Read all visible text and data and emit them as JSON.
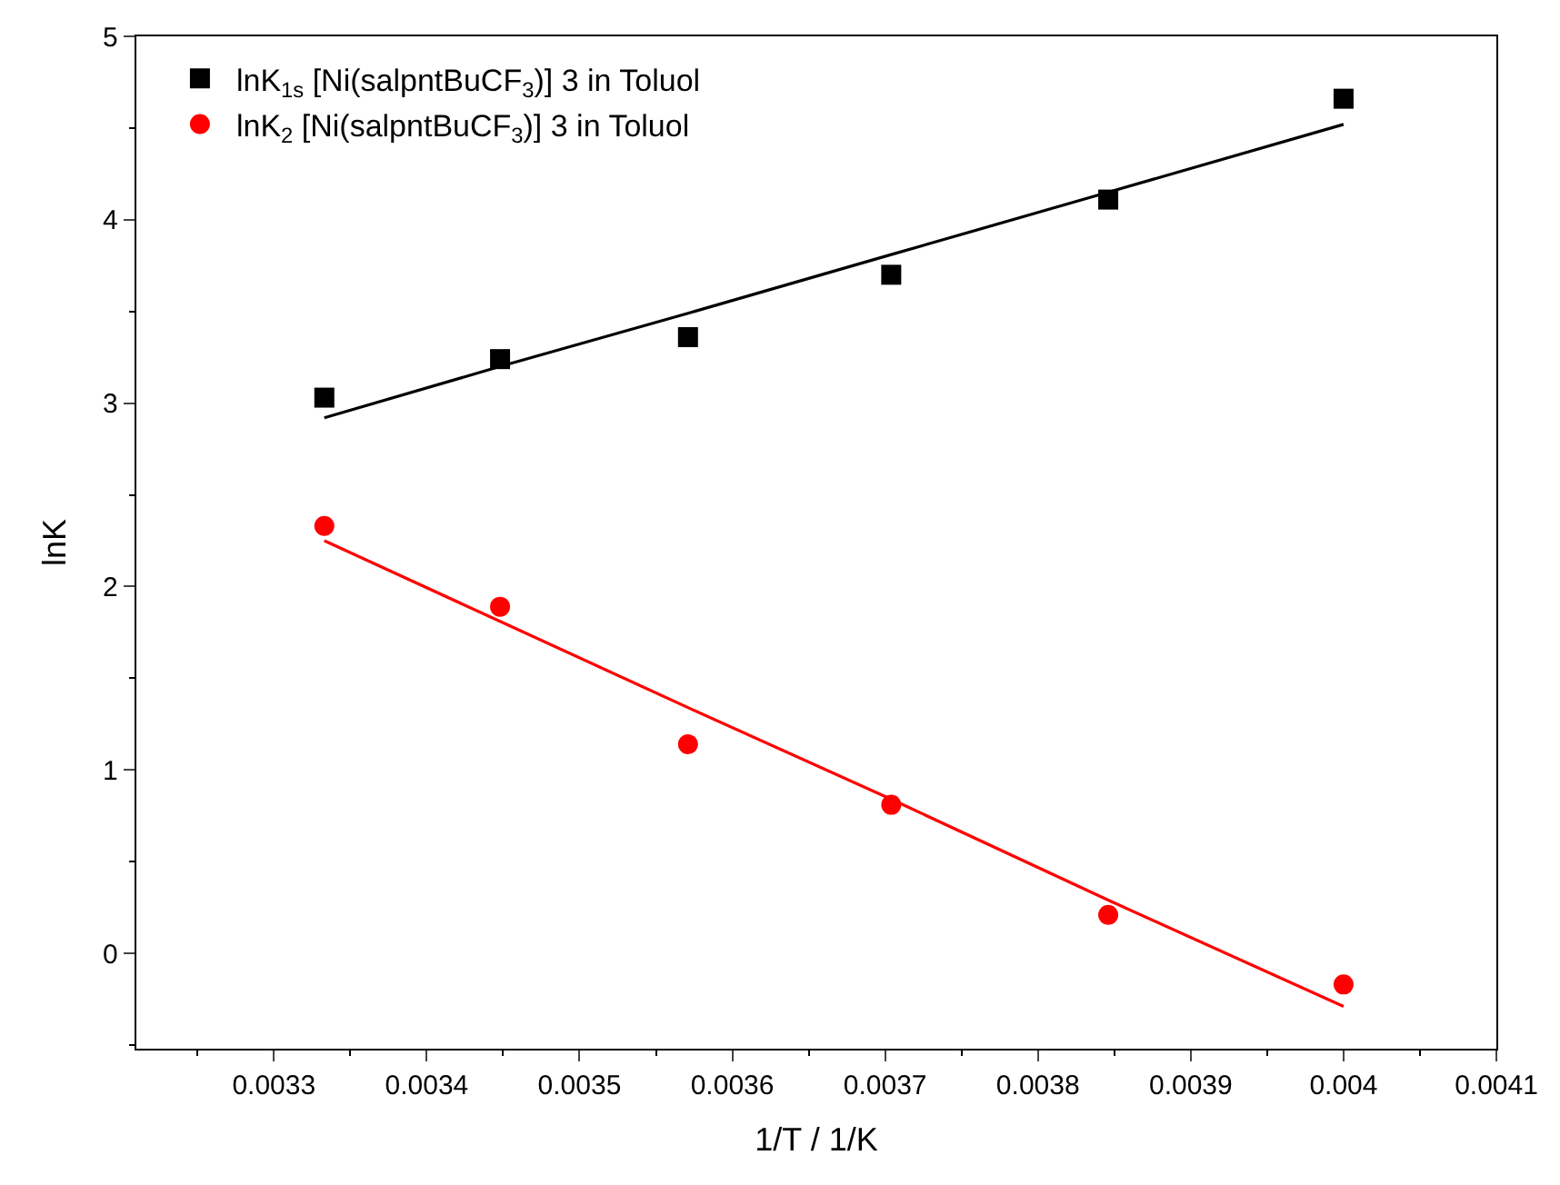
{
  "chart_data": {
    "type": "scatter",
    "xlabel": "1/T / 1/K",
    "ylabel": "lnK",
    "xlim": [
      0.00321,
      0.0041
    ],
    "ylim": [
      -0.52,
      5
    ],
    "xticks": [
      0.0033,
      0.0034,
      0.0035,
      0.0036,
      0.0037,
      0.0038,
      0.0039,
      0.004,
      0.0041
    ],
    "yticks": [
      0,
      1,
      2,
      3,
      4,
      5
    ],
    "legend": "top left",
    "x": [
      0.003333,
      0.003448,
      0.003571,
      0.003704,
      0.003846,
      0.004
    ],
    "series": [
      {
        "name": "lnK$_{1s}$ [Ni(salpntBuCF$_{3}$)] 3 in Toluol",
        "color": "#000000",
        "marker": "square",
        "values": [
          3.03,
          3.24,
          3.36,
          3.7,
          4.11,
          4.66
        ]
      },
      {
        "name": "lnK$_{2}$ [Ni(salpntBuCF$_{3}$)] 3 in Toluol",
        "color": "#ff0000",
        "marker": "circle",
        "values": [
          2.33,
          1.89,
          1.14,
          0.81,
          0.21,
          -0.17
        ]
      },
      {
        "type": "line",
        "color": "#000000",
        "values": [
          2.92,
          3.2,
          3.49,
          3.81,
          4.15,
          4.52
        ]
      },
      {
        "type": "line",
        "color": "#ff0000",
        "values": [
          2.25,
          1.81,
          1.34,
          0.84,
          0.29,
          -0.29
        ]
      }
    ]
  }
}
